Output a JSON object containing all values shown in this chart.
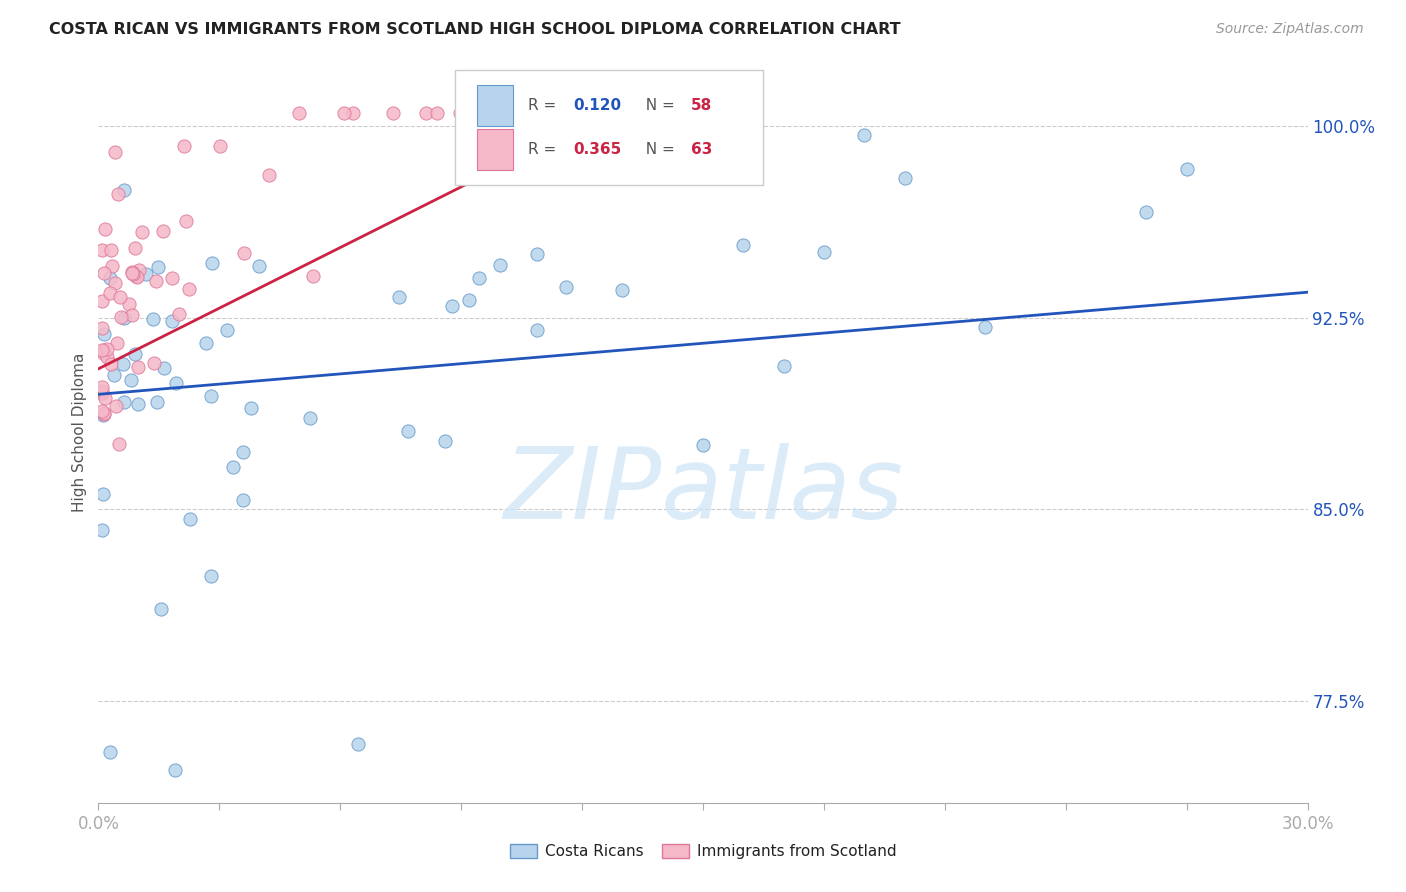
{
  "title": "COSTA RICAN VS IMMIGRANTS FROM SCOTLAND HIGH SCHOOL DIPLOMA CORRELATION CHART",
  "source": "Source: ZipAtlas.com",
  "ylabel": "High School Diploma",
  "ytick_labels": [
    "77.5%",
    "85.0%",
    "92.5%",
    "100.0%"
  ],
  "ytick_values": [
    0.775,
    0.85,
    0.925,
    1.0
  ],
  "xmin": 0.0,
  "xmax": 0.3,
  "ymin": 0.735,
  "ymax": 1.025,
  "watermark": "ZIPatlas",
  "legend_blue_r": "0.120",
  "legend_blue_n": "58",
  "legend_pink_r": "0.365",
  "legend_pink_n": "63",
  "blue_color": "#b8d4ec",
  "blue_edge": "#6699cc",
  "pink_color": "#f5b8c8",
  "pink_edge": "#dd7799",
  "blue_line_color": "#2255bb",
  "pink_line_color": "#cc2244",
  "title_color": "#222222",
  "source_color": "#999999",
  "ylabel_color": "#555555",
  "ytick_color": "#2255bb",
  "xtick_color": "#2255bb",
  "grid_color": "#cccccc",
  "watermark_color": "#cce4f6"
}
